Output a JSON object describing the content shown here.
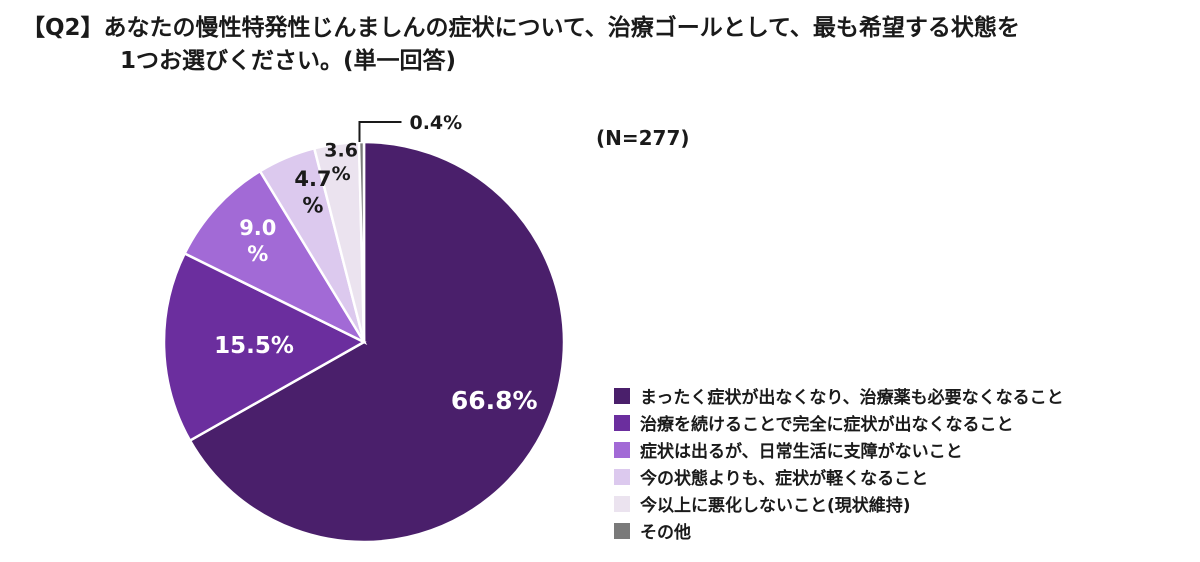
{
  "title": {
    "line1": "【Q2】あなたの慢性特発性じんましんの症状について、治療ゴールとして、最も希望する状態を",
    "line2": "1つお選びください。(単一回答)"
  },
  "sample_size": "(N=277)",
  "chart_data": {
    "type": "pie",
    "title": "【Q2】あなたの慢性特発性じんましんの症状について、治療ゴールとして、最も希望する状態を1つお選びください。(単一回答)",
    "start_angle_deg": 0,
    "direction": "clockwise",
    "legend_position": "right",
    "slices": [
      {
        "label": "まったく症状が出なくなり、治療薬も必要なくなること",
        "value": 66.8,
        "display": "66.8%",
        "color": "#4a1f6b",
        "label_color": "#ffffff"
      },
      {
        "label": "治療を続けることで完全に症状が出なくなること",
        "value": 15.5,
        "display": "15.5%",
        "color": "#6b2e9e",
        "label_color": "#ffffff"
      },
      {
        "label": "症状は出るが、日常生活に支障がないこと",
        "value": 9.0,
        "display": "9.0\n%",
        "color": "#a26ad6",
        "label_color": "#ffffff"
      },
      {
        "label": "今の状態よりも、症状が軽くなること",
        "value": 4.7,
        "display": "4.7\n%",
        "color": "#dcc9ee",
        "label_color": "#1a1a1a"
      },
      {
        "label": "今以上に悪化しないこと(現状維持)",
        "value": 3.6,
        "display": "3.6\n%",
        "color": "#ebe3ef",
        "label_color": "#1a1a1a"
      },
      {
        "label": "その他",
        "value": 0.4,
        "display": "0.4%",
        "color": "#7a7a7a",
        "label_color": "#1a1a1a"
      }
    ]
  }
}
